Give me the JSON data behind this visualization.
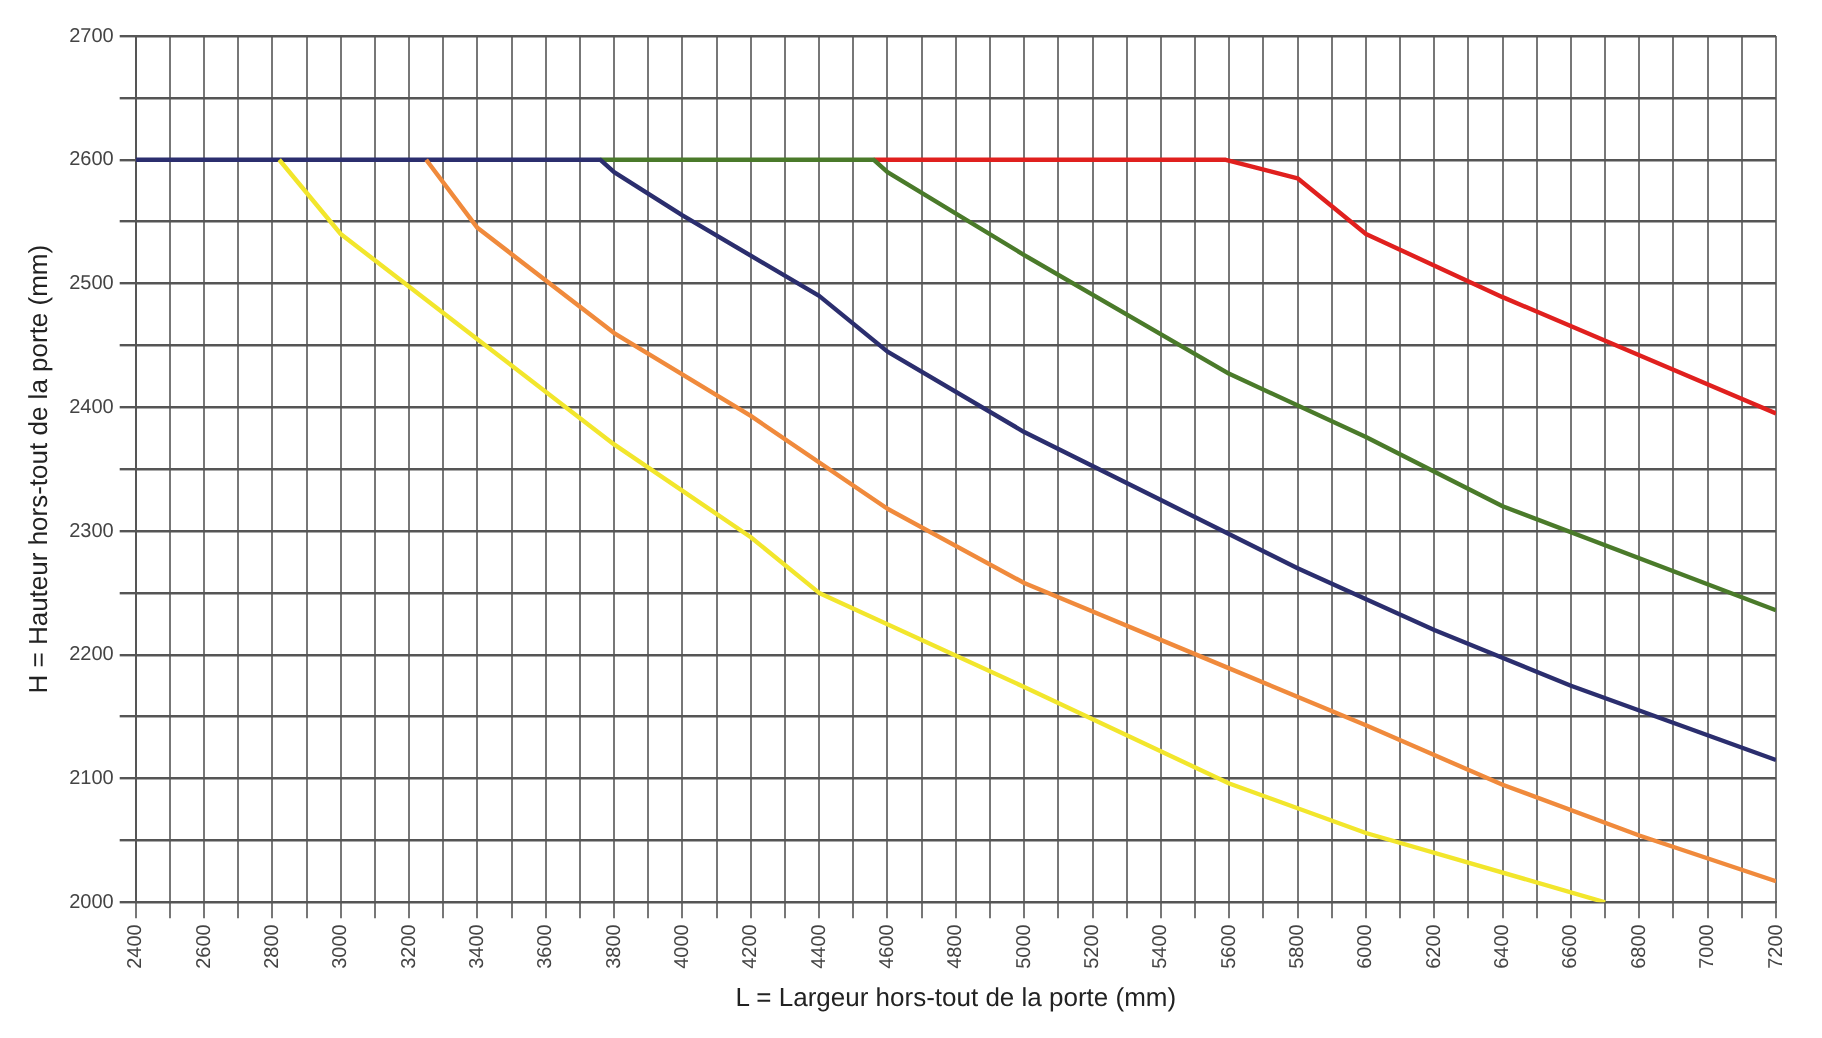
{
  "chart_data": {
    "type": "line",
    "xlabel": "L = Largeur hors-tout de la porte (mm)",
    "ylabel": "H = Hauteur hors-tout de la porte (mm)",
    "xlim": [
      2400,
      7200
    ],
    "xticks": [
      2400,
      {
        "value": 2500,
        "label": null
      },
      2600,
      {
        "value": 2700,
        "label": null
      },
      2800,
      {
        "value": 2900,
        "label": null
      },
      3000,
      {
        "value": 3100,
        "label": null
      },
      3200,
      {
        "value": 3300,
        "label": null
      },
      3400,
      {
        "value": 3500,
        "label": null
      },
      3600,
      {
        "value": 3700,
        "label": null
      },
      3800,
      {
        "value": 3900,
        "label": null
      },
      4000,
      {
        "value": 4100,
        "label": null
      },
      4200,
      {
        "value": 4300,
        "label": null
      },
      4400,
      {
        "value": 4500,
        "label": null
      },
      4600,
      {
        "value": 4700,
        "label": null
      },
      4800,
      {
        "value": 4900,
        "label": null
      },
      5000,
      {
        "value": 5100,
        "label": null
      },
      5200,
      {
        "value": 5300,
        "label": null
      },
      5400,
      {
        "value": 5500,
        "label": null
      },
      5600,
      {
        "value": 5700,
        "label": null
      },
      5800,
      {
        "value": 5900,
        "label": null
      },
      6000,
      {
        "value": 6100,
        "label": null
      },
      6200,
      {
        "value": 6300,
        "label": null
      },
      6400,
      {
        "value": 6500,
        "label": null
      },
      6600,
      {
        "value": 6700,
        "label": null
      },
      6800,
      {
        "value": 6900,
        "label": null
      },
      7000,
      {
        "value": 7100,
        "label": null
      },
      7200
    ],
    "ylim": [
      2000,
      2700
    ],
    "yticks": [
      2000,
      {
        "value": 2050,
        "label": null
      },
      2100,
      {
        "value": 2150,
        "label": null
      },
      2200,
      {
        "value": 2250,
        "label": null
      },
      2300,
      {
        "value": 2350,
        "label": null
      },
      2400,
      {
        "value": 2450,
        "label": null
      },
      2500,
      {
        "value": 2550,
        "label": null
      },
      2600,
      {
        "value": 2650,
        "label": null
      },
      2700
    ],
    "grid": true,
    "marker": "none",
    "line_style": "solid",
    "series": [
      {
        "color": "#f2e62c",
        "x": [
          2820,
          3000,
          3400,
          3800,
          4200,
          4400,
          5000,
          5600,
          6000,
          6700
        ],
        "values": [
          2600,
          2540,
          2455,
          2370,
          2295,
          2250,
          2174,
          2096,
          2056,
          2000
        ]
      },
      {
        "color": "#f08a3c",
        "x": [
          3250,
          3400,
          3800,
          4200,
          4600,
          5000,
          5600,
          6000,
          6400,
          6800,
          7200
        ],
        "values": [
          2600,
          2545,
          2460,
          2393,
          2318,
          2258,
          2189,
          2143,
          2095,
          2054,
          2017
        ]
      },
      {
        "color": "#2b2e6e",
        "x": [
          2400,
          3760,
          3800,
          4000,
          4400,
          4600,
          5000,
          5400,
          5800,
          6200,
          6600,
          7000,
          7200
        ],
        "values": [
          2600,
          2600,
          2590,
          2555,
          2490,
          2445,
          2380,
          2325,
          2270,
          2220,
          2175,
          2135,
          2115
        ]
      },
      {
        "color": "#4a7a2a",
        "x": [
          3760,
          4560,
          4600,
          5000,
          5600,
          6000,
          6400,
          7200
        ],
        "values": [
          2600,
          2600,
          2590,
          2523,
          2427,
          2376,
          2320,
          2236
        ]
      },
      {
        "color": "#e0201e",
        "x": [
          4560,
          5590,
          5800,
          6000,
          6400,
          6800,
          7200
        ],
        "values": [
          2600,
          2600,
          2585,
          2540,
          2489,
          2442,
          2395
        ]
      }
    ]
  }
}
